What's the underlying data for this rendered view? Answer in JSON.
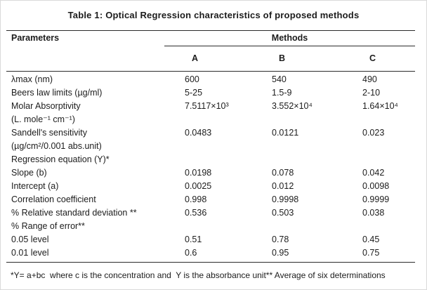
{
  "page": {
    "title": "Table 1: Optical Regression characteristics of proposed methods",
    "footnote": "*Y= a+bc  where c is the concentration and  Y is the absorbance unit** Average of six determinations"
  },
  "colors": {
    "background": "#ffffff",
    "text": "#1c1c1c",
    "rule_line": "#2b2b2b",
    "outer_border": "#d9d9d9"
  },
  "table": {
    "param_header": "Parameters",
    "methods_header": "Methods",
    "method_columns": [
      "A",
      "B",
      "C"
    ],
    "rows": [
      {
        "param": "λmax (nm)",
        "a": "600",
        "b": "540",
        "c": "490"
      },
      {
        "param": "Beers law limits (µg/ml)",
        "a": "5-25",
        "b": "1.5-9",
        "c": "2-10"
      },
      {
        "param": "Molar Absorptivity",
        "a": "7.5117×10³",
        "b": "3.552×10⁴",
        "c": "1.64×10⁴"
      },
      {
        "param": "(L. mole⁻¹ cm⁻¹)",
        "a": "",
        "b": "",
        "c": ""
      },
      {
        "param": "Sandell's sensitivity",
        "a": "0.0483",
        "b": "0.0121",
        "c": "0.023"
      },
      {
        "param": "(µg/cm²/0.001 abs.unit)",
        "a": "",
        "b": "",
        "c": ""
      },
      {
        "param": "Regression equation (Y)*",
        "a": "",
        "b": "",
        "c": ""
      },
      {
        "param": "Slope (b)",
        "a": "0.0198",
        "b": "0.078",
        "c": "0.042"
      },
      {
        "param": "Intercept (a)",
        "a": "0.0025",
        "b": "0.012",
        "c": "0.0098"
      },
      {
        "param": "Correlation coefficient",
        "a": "0.998",
        "b": "0.9998",
        "c": "0.9999"
      },
      {
        "param": "% Relative standard deviation **",
        "a": "0.536",
        "b": "0.503",
        "c": "0.038"
      },
      {
        "param": "% Range of error**",
        "a": "",
        "b": "",
        "c": ""
      },
      {
        "param": "0.05 level",
        "a": "0.51",
        "b": "0.78",
        "c": "0.45"
      },
      {
        "param": "0.01 level",
        "a": "0.6",
        "b": "0.95",
        "c": "0.75"
      }
    ]
  }
}
